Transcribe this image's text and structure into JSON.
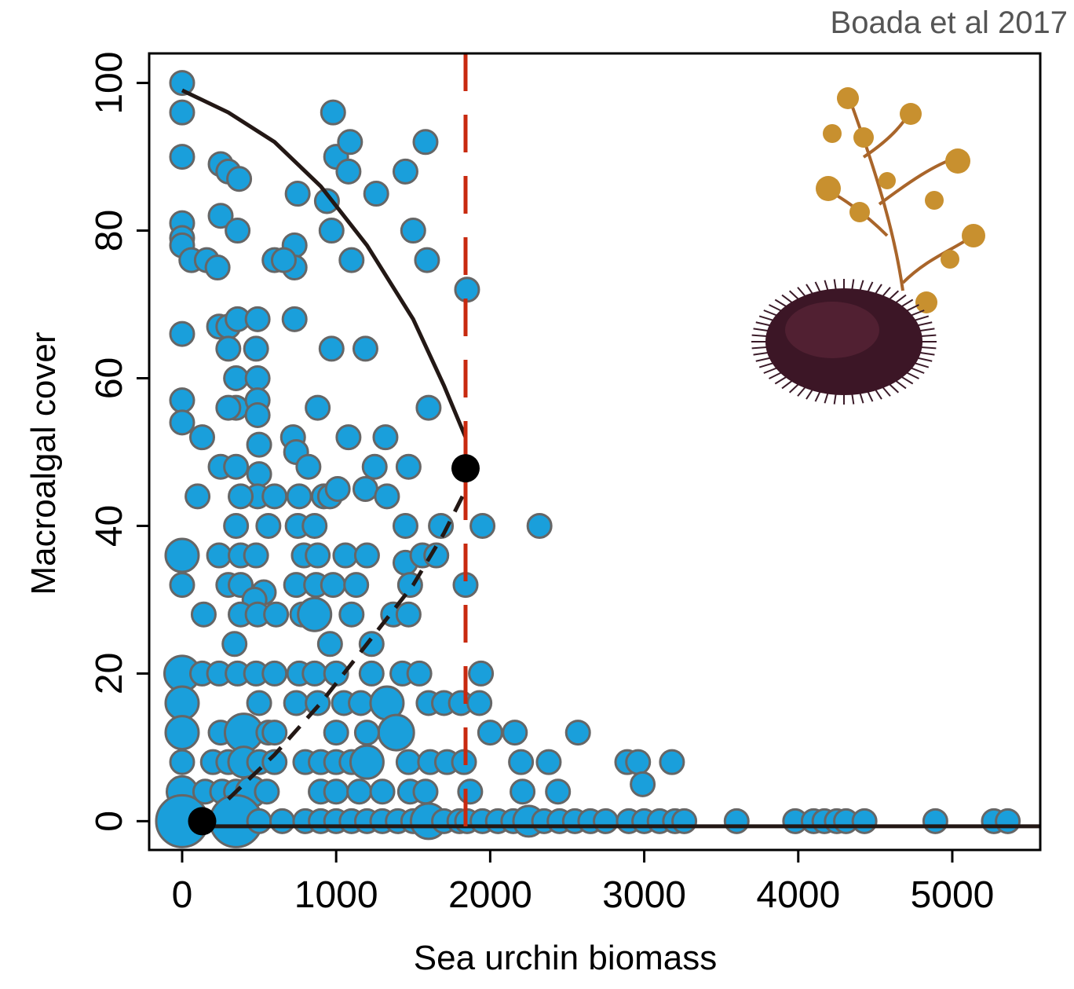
{
  "chart_data": {
    "type": "scatter",
    "annotation": "Boada et al 2017",
    "x_label": "Sea urchin biomass",
    "y_label": "Macroalgal cover",
    "xlim": [
      -214,
      5571
    ],
    "ylim": [
      -3.9,
      104
    ],
    "xticks": [
      0,
      1000,
      2000,
      3000,
      4000,
      5000
    ],
    "yticks": [
      0,
      20,
      40,
      60,
      80,
      100
    ],
    "color": "#1a9fdb",
    "edge_color": "#666666",
    "x": [
      0,
      0,
      0,
      0,
      0,
      0,
      0,
      0,
      0,
      0,
      0,
      0,
      0,
      0,
      0,
      0,
      0,
      130,
      60,
      100,
      140,
      130,
      160,
      230,
      250,
      250,
      300,
      370,
      360,
      240,
      300,
      360,
      490,
      300,
      480,
      350,
      490,
      350,
      490,
      490,
      300,
      250,
      350,
      500,
      500,
      490,
      380,
      600,
      350,
      560,
      240,
      380,
      480,
      300,
      380,
      530,
      470,
      380,
      490,
      610,
      340,
      240,
      360,
      480,
      600,
      250,
      400,
      560,
      500,
      600,
      200,
      300,
      400,
      500,
      600,
      150,
      260,
      350,
      450,
      550,
      350,
      500,
      650,
      800,
      900,
      1000,
      1100,
      1200,
      1300,
      1400,
      1500,
      1600,
      1700,
      1800,
      1850,
      1950,
      2050,
      2150,
      2250,
      2350,
      2450,
      2550,
      2650,
      2750,
      2900,
      3000,
      3100,
      3200,
      3260,
      3600,
      3980,
      4100,
      4170,
      4250,
      4310,
      4430,
      4890,
      5270,
      5360,
      750,
      940,
      730,
      730,
      600,
      660,
      970,
      1100,
      980,
      1000,
      1090,
      1080,
      1260,
      1450,
      1500,
      1580,
      1590,
      1850,
      970,
      1190,
      730,
      880,
      1600,
      720,
      740,
      1080,
      1320,
      820,
      1250,
      1470,
      760,
      920,
      960,
      1010,
      1190,
      1330,
      750,
      860,
      1450,
      1680,
      1950,
      2320,
      790,
      880,
      1060,
      1200,
      1450,
      1560,
      1650,
      740,
      870,
      980,
      1130,
      1480,
      1840,
      780,
      860,
      1100,
      1370,
      1470,
      960,
      1230,
      760,
      860,
      1000,
      1230,
      1430,
      1540,
      1940,
      740,
      880,
      1050,
      1160,
      1330,
      1600,
      1700,
      1810,
      1930,
      1390,
      1000,
      1200,
      2000,
      2160,
      2570,
      800,
      900,
      1000,
      1100,
      1200,
      1470,
      1610,
      1720,
      1830,
      2200,
      2380,
      2890,
      2960,
      3180,
      2990,
      900,
      1000,
      1150,
      1300,
      1480,
      1580,
      1870,
      2210,
      2440
    ],
    "values": [
      100,
      96,
      90,
      81,
      79,
      78,
      66,
      57,
      54,
      36,
      32,
      20,
      16,
      12,
      8,
      4,
      0,
      52,
      76,
      44,
      28,
      20,
      76,
      75,
      89,
      82,
      88,
      87,
      80,
      67,
      67,
      68,
      68,
      64,
      64,
      60,
      60,
      56,
      57,
      55,
      56,
      48,
      48,
      51,
      47,
      44,
      44,
      44,
      40,
      40,
      36,
      36,
      36,
      32,
      32,
      31,
      30,
      28,
      28,
      28,
      24,
      20,
      20,
      20,
      20,
      12,
      12,
      12,
      16,
      12,
      8,
      8,
      8,
      8,
      8,
      4,
      4,
      4,
      4,
      4,
      0,
      0,
      0,
      0,
      0,
      0,
      0,
      0,
      0,
      0,
      0,
      0,
      0,
      0,
      0,
      0,
      0,
      0,
      0,
      0,
      0,
      0,
      0,
      0,
      0,
      0,
      0,
      0,
      0,
      0,
      0,
      0,
      0,
      0,
      0,
      0,
      0,
      0,
      0,
      85,
      84,
      78,
      75,
      76,
      76,
      80,
      76,
      96,
      90,
      92,
      88,
      85,
      88,
      80,
      92,
      76,
      72,
      64,
      64,
      68,
      56,
      56,
      52,
      50,
      52,
      52,
      48,
      48,
      48,
      44,
      44,
      44,
      45,
      45,
      44,
      40,
      40,
      40,
      40,
      40,
      40,
      36,
      36,
      36,
      36,
      35,
      36,
      36,
      32,
      32,
      32,
      32,
      32,
      32,
      28,
      28,
      28,
      28,
      28,
      24,
      24,
      20,
      20,
      20,
      20,
      20,
      20,
      20,
      16,
      16,
      16,
      16,
      16,
      16,
      16,
      16,
      16,
      12,
      12,
      12,
      12,
      12,
      12,
      8,
      8,
      8,
      8,
      8,
      8,
      8,
      8,
      8,
      8,
      8,
      8,
      8,
      8,
      5,
      4,
      4,
      4,
      4,
      4,
      4,
      4,
      4,
      4
    ],
    "sizes": [
      1,
      1,
      1,
      1,
      1,
      1,
      1,
      1,
      1,
      1.4,
      1,
      1.5,
      1.4,
      1.4,
      1,
      1.3,
      2.2,
      1,
      1,
      1,
      1,
      1,
      1,
      1,
      1,
      1,
      1,
      1,
      1,
      1,
      1,
      1,
      1,
      1,
      1,
      1,
      1,
      1,
      1,
      1,
      1,
      1,
      1,
      1,
      1,
      1,
      1,
      1,
      1,
      1,
      1,
      1,
      1,
      1,
      1,
      1,
      1,
      1,
      1,
      1,
      1,
      1,
      1,
      1,
      1,
      1,
      1.6,
      1,
      1,
      1,
      1,
      1,
      1.3,
      1,
      1,
      1,
      1,
      1,
      1.3,
      1,
      2.2,
      1,
      1,
      1,
      1,
      1,
      1,
      1,
      1,
      1,
      1,
      1.5,
      1,
      1,
      1,
      1,
      1,
      1,
      1.3,
      1,
      1,
      1,
      1,
      1,
      1,
      1,
      1,
      1,
      1,
      1,
      1,
      1,
      1,
      1,
      1,
      1,
      1,
      1,
      1,
      1,
      1,
      1,
      1,
      1,
      1,
      1,
      1,
      1,
      1,
      1,
      1,
      1,
      1,
      1,
      1,
      1,
      1,
      1,
      1,
      1,
      1,
      1,
      1,
      1,
      1,
      1,
      1,
      1,
      1,
      1,
      1,
      1,
      1,
      1,
      1,
      1,
      1,
      1,
      1,
      1,
      1,
      1,
      1,
      1,
      1,
      1,
      1,
      1,
      1,
      1,
      1,
      1,
      1,
      1,
      1,
      1.4,
      1,
      1,
      1,
      1,
      1,
      1,
      1,
      1,
      1,
      1,
      1,
      1,
      1,
      1,
      1,
      1,
      1.4,
      1,
      1,
      1,
      1,
      1.5,
      1,
      1,
      1,
      1,
      1,
      1,
      1,
      1,
      1,
      1.4,
      1,
      1,
      1,
      1,
      1,
      1,
      1,
      1,
      1,
      1,
      1,
      1,
      1,
      1,
      1,
      1,
      1,
      1,
      1
    ],
    "fits": [
      {
        "style": "solid",
        "color": "#231815",
        "x": [
          0,
          300,
          600,
          900,
          1200,
          1500,
          1700,
          1840
        ],
        "y": [
          99,
          96,
          92,
          86,
          78,
          68,
          59,
          52
        ]
      },
      {
        "style": "dashed",
        "color": "#231815",
        "x": [
          300,
          600,
          900,
          1200,
          1500,
          1700,
          1820
        ],
        "y": [
          3,
          9,
          16,
          24,
          32,
          39,
          44
        ]
      },
      {
        "style": "solid",
        "color": "#231815",
        "x": [
          130,
          5571
        ],
        "y": [
          -0.7,
          -0.7
        ]
      }
    ],
    "breakpoints": {
      "color": "#000000",
      "x": [
        130,
        1840
      ],
      "y": [
        0,
        47.8
      ]
    },
    "threshold": {
      "x": 1840,
      "color": "#c8290f"
    }
  }
}
